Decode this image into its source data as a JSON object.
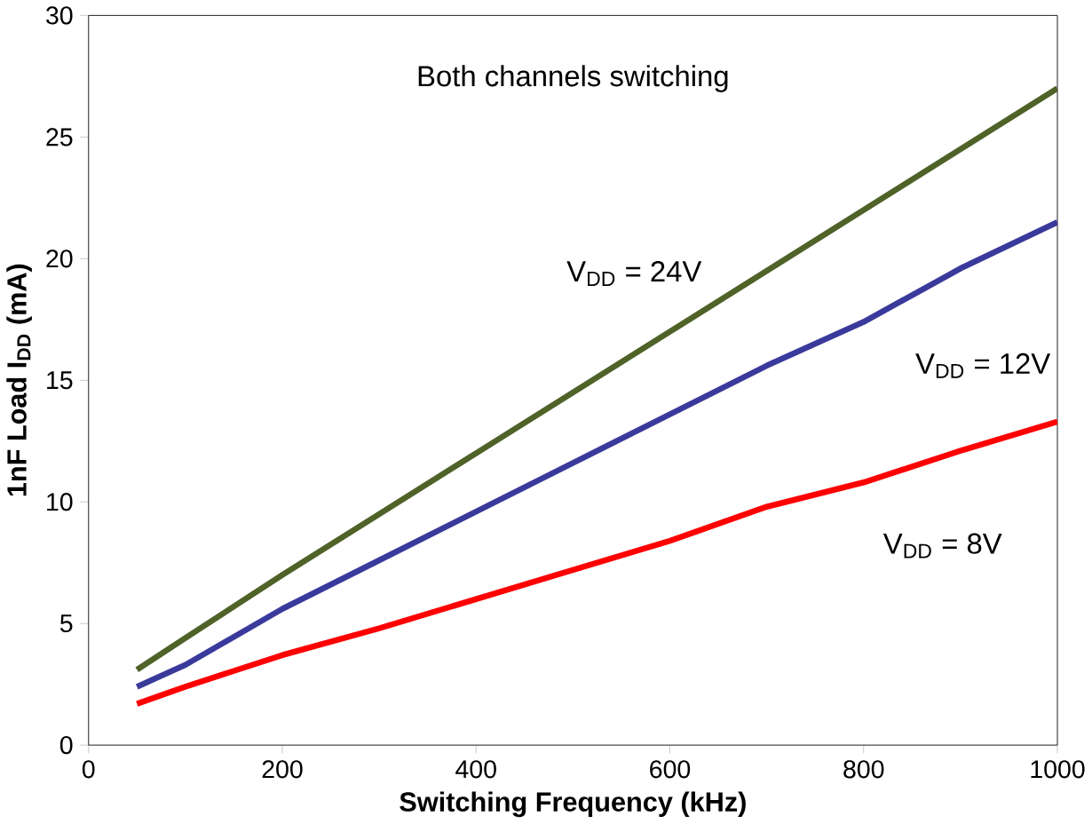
{
  "chart_data": {
    "type": "line",
    "xlabel": "Switching Frequency (kHz)",
    "ylabel": "1nF Load I$_{DD}$ (mA)",
    "x": [
      50,
      100,
      200,
      300,
      400,
      500,
      600,
      700,
      800,
      900,
      1000
    ],
    "xlim": [
      0,
      1000
    ],
    "xticks": [
      0,
      200,
      400,
      600,
      800,
      1000
    ],
    "ylim": [
      0,
      30
    ],
    "yticks": [
      0,
      5,
      10,
      15,
      20,
      25,
      30
    ],
    "annotations": [
      "Both channels switching"
    ],
    "series": [
      {
        "name": "V$_{DD}$ = 24V",
        "color": "#4f6228",
        "values": [
          3.1,
          4.4,
          7.0,
          9.5,
          12.0,
          14.5,
          17.0,
          19.5,
          22.0,
          24.5,
          27.0
        ]
      },
      {
        "name": "V$_{DD}$ = 12V",
        "color": "#3a3a9c",
        "values": [
          2.4,
          3.3,
          5.6,
          7.6,
          9.6,
          11.6,
          13.6,
          15.6,
          17.4,
          19.6,
          21.5
        ]
      },
      {
        "name": "V$_{DD}$ = 8V",
        "color": "#ff0000",
        "values": [
          1.7,
          2.4,
          3.7,
          4.8,
          6.0,
          7.2,
          8.4,
          9.8,
          10.8,
          12.1,
          13.3
        ]
      }
    ],
    "grid": false,
    "legend": false,
    "marker": "none",
    "line_style": "solid"
  }
}
